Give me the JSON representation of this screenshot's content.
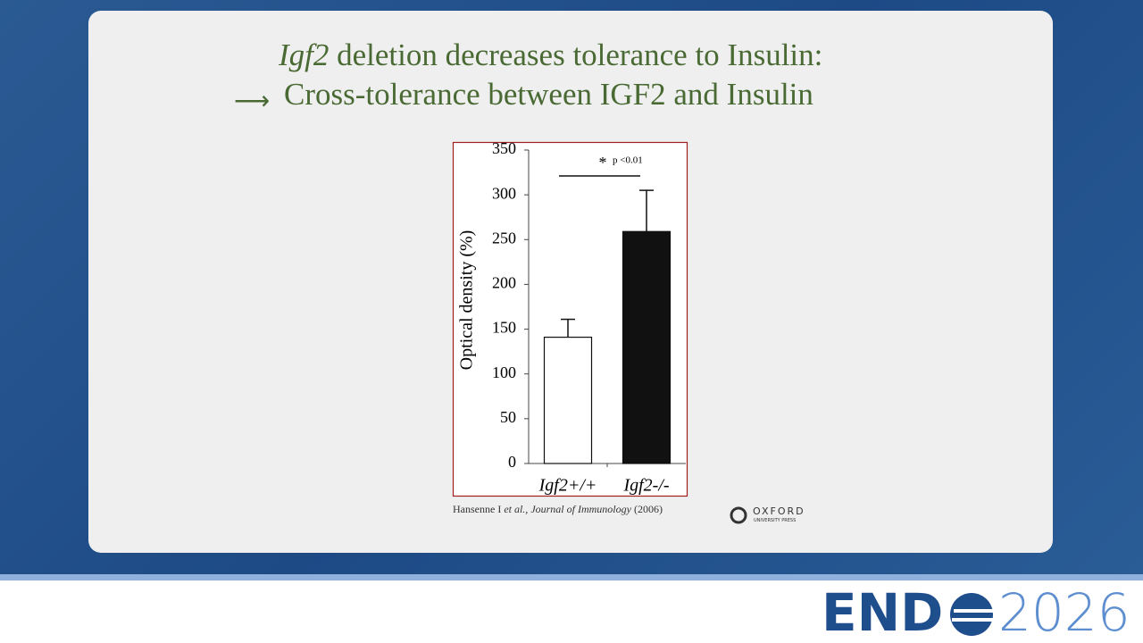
{
  "slide": {
    "title_italic": "Igf2",
    "title_rest": "deletion decreases tolerance to Insulin:",
    "subtitle": "Cross-tolerance between IGF2 and Insulin",
    "citation": {
      "author": "Hansenne I",
      "etal": "et al.,",
      "journal": "Journal of Immunology",
      "year": "(2006)"
    },
    "publisher": {
      "name": "OXFORD",
      "sub": "UNIVERSITY PRESS"
    },
    "event": {
      "name": "END",
      "year": "2026"
    }
  },
  "chart_data": {
    "type": "bar",
    "y_label": "Optical density (%)",
    "categories": [
      "Igf2+/+",
      "Igf2-/-"
    ],
    "values": [
      141,
      259
    ],
    "errors": [
      20,
      46
    ],
    "colors": [
      "#ffffff",
      "#111111"
    ],
    "ylim": [
      0,
      350
    ],
    "yticks": [
      0,
      50,
      100,
      150,
      200,
      250,
      300,
      350
    ],
    "annotation": {
      "star": "*",
      "text": "p <0.01"
    }
  }
}
